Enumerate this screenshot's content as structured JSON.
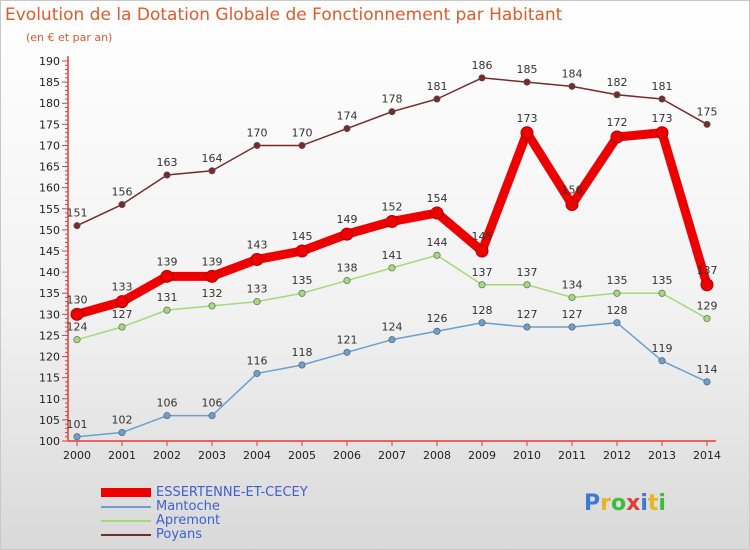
{
  "header": {
    "title": "Evolution de la Dotation Globale de Fonctionnement par Habitant",
    "subtitle": "(en € et par an)"
  },
  "logo": {
    "text": "Proxiti",
    "colors": [
      "#3b7bd6",
      "#e8b51e",
      "#3bbf3b",
      "#e23b3b",
      "#3b7bd6",
      "#e8b51e",
      "#3bbf3b"
    ]
  },
  "chart_data": {
    "type": "line",
    "x": [
      "2000",
      "2001",
      "2002",
      "2003",
      "2004",
      "2005",
      "2006",
      "2007",
      "2008",
      "2009",
      "2010",
      "2011",
      "2012",
      "2013",
      "2014"
    ],
    "ylim": [
      100,
      190
    ],
    "yticks": [
      "100",
      "105",
      "110",
      "115",
      "120",
      "125",
      "130",
      "135",
      "140",
      "145",
      "150",
      "155",
      "160",
      "165",
      "170",
      "175",
      "180",
      "185",
      "190"
    ],
    "grid": false,
    "legend_position": "bottom-left",
    "series": [
      {
        "name": "ESSERTENNE-ET-CECEY",
        "color": "#ee0000",
        "values": [
          130,
          133,
          139,
          139,
          143,
          145,
          149,
          152,
          154,
          145,
          173,
          156,
          172,
          173,
          137
        ],
        "labels": [
          "130",
          "133",
          "139",
          "139",
          "143",
          "145",
          "149",
          "152",
          "154",
          "145",
          "173",
          "156",
          "172",
          "173",
          "137"
        ]
      },
      {
        "name": "Mantoche",
        "color": "#6a9fd0",
        "values": [
          101,
          102,
          106,
          106,
          116,
          118,
          121,
          124,
          126,
          128,
          127,
          127,
          128,
          119,
          114
        ],
        "labels": [
          "101",
          "102",
          "106",
          "106",
          "116",
          "118",
          "121",
          "124",
          "126",
          "128",
          "127",
          "127",
          "128",
          "119",
          "114"
        ]
      },
      {
        "name": "Apremont",
        "color": "#a3d97a",
        "values": [
          124,
          127,
          131,
          132,
          133,
          135,
          138,
          141,
          144,
          137,
          137,
          134,
          135,
          135,
          129
        ],
        "labels": [
          "124",
          "127",
          "131",
          "132",
          "133",
          "135",
          "138",
          "141",
          "144",
          "137",
          "137",
          "134",
          "135",
          "135",
          "129"
        ]
      },
      {
        "name": "Poyans",
        "color": "#7a2a2a",
        "values": [
          151,
          156,
          163,
          164,
          170,
          170,
          174,
          178,
          181,
          186,
          185,
          184,
          182,
          181,
          175
        ],
        "labels": [
          "151",
          "156",
          "163",
          "164",
          "170",
          "170",
          "174",
          "178",
          "181",
          "186",
          "185",
          "184",
          "182",
          "181",
          "175"
        ]
      }
    ]
  }
}
